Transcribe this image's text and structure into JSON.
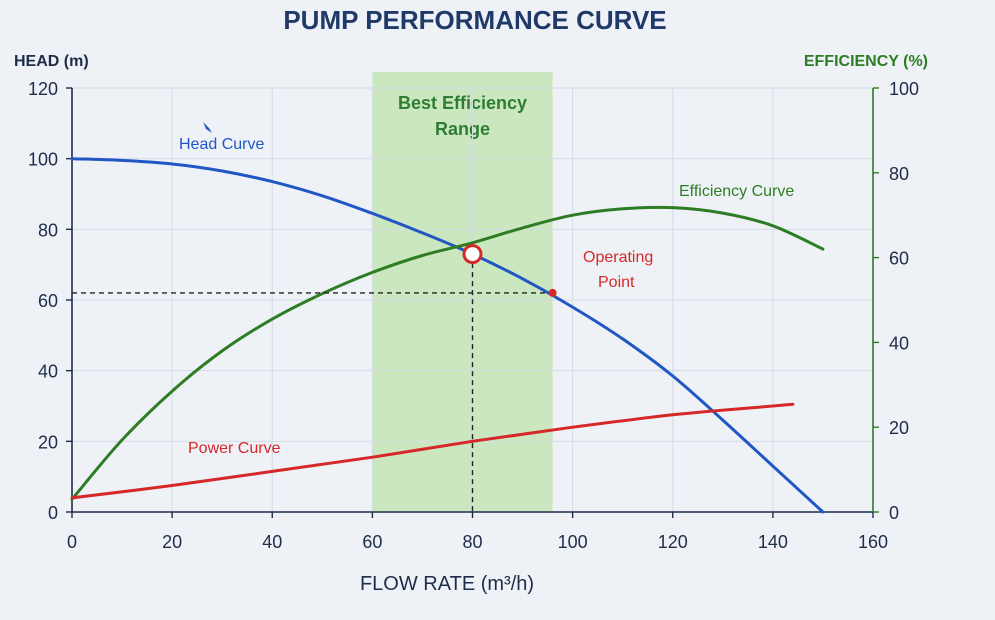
{
  "chart_data": {
    "type": "line",
    "title": "PUMP PERFORMANCE CURVE",
    "xlabel": "FLOW RATE (m³/h)",
    "ylabel_left": "HEAD (m)",
    "ylabel_right": "EFFICIENCY (%)",
    "xlim": [
      0,
      160
    ],
    "ylim_left": [
      0,
      120
    ],
    "ylim_right": [
      0,
      100
    ],
    "x_ticks": [
      "0",
      "20",
      "40",
      "60",
      "80",
      "100",
      "120",
      "140",
      "160"
    ],
    "y_ticks_left": [
      "0",
      "20",
      "40",
      "60",
      "80",
      "100",
      "120"
    ],
    "y_ticks_right": [
      "0",
      "20",
      "40",
      "60",
      "80",
      "100"
    ],
    "grid": true,
    "colors": {
      "head": "#2057c4",
      "efficiency": "#2e7d24",
      "power": "#d62828",
      "band": "#c6e6b8"
    },
    "best_efficiency_range": {
      "label_line1": "Best Efficiency",
      "label_line2": "Range",
      "x_start": 60,
      "x_end": 96
    },
    "series": [
      {
        "name": "Head Curve",
        "axis": "left",
        "x": [
          0,
          10,
          20,
          30,
          40,
          50,
          60,
          70,
          80,
          90,
          100,
          110,
          120,
          130,
          140,
          150
        ],
        "y": [
          100,
          99.5,
          98.5,
          96.5,
          93.5,
          89.5,
          84.5,
          79,
          73,
          66,
          58,
          49,
          38.5,
          26,
          13,
          0
        ]
      },
      {
        "name": "Efficiency Curve",
        "axis": "right",
        "x": [
          0,
          10,
          20,
          30,
          40,
          50,
          60,
          70,
          80,
          90,
          100,
          110,
          120,
          130,
          140,
          150
        ],
        "y": [
          3,
          17,
          28.5,
          38,
          45.5,
          51.5,
          56.5,
          60.5,
          63.5,
          67,
          70,
          71.5,
          71.8,
          70.5,
          67.5,
          62
        ]
      },
      {
        "name": "Power Curve",
        "axis": "left",
        "x": [
          0,
          20,
          40,
          60,
          80,
          100,
          120,
          140,
          144
        ],
        "y": [
          4,
          7.5,
          11.5,
          15.5,
          20,
          24,
          27.5,
          30,
          30.5
        ]
      }
    ],
    "annotations": {
      "head_label": "Head Curve",
      "efficiency_label": "Efficiency Curve",
      "power_label": "Power Curve",
      "operating_line1": "Operating",
      "operating_line2": "Point",
      "operating_point": {
        "x": 80,
        "head": 73
      },
      "marker_point": {
        "x": 96,
        "head": 62
      }
    }
  }
}
